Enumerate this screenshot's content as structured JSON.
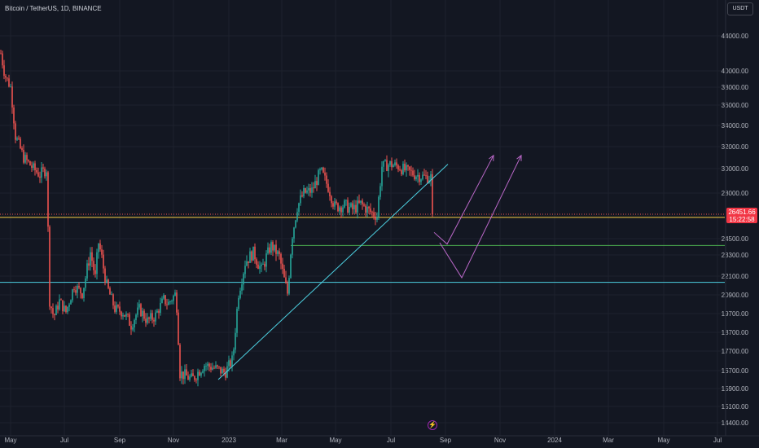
{
  "header": {
    "symbol_title": "Bitcoin / TetherUS, 1D, BINANCE",
    "currency_button": "USDT"
  },
  "colors": {
    "background": "#131722",
    "up_candle": "#26a69a",
    "down_candle": "#ef5350",
    "grid": "#1e222d",
    "axis_text": "#b2b5be",
    "yellow_level": "#f7d046",
    "green_level": "#4caf50",
    "cyan_level": "#4dd0e1",
    "trendline": "#4dd0e1",
    "projection": "#ba68c8",
    "price_tag": "#f23645"
  },
  "chart_data": {
    "type": "candlestick",
    "title": "Bitcoin / TetherUS, 1D, BINANCE",
    "y_axis_ticks": [
      "44000.00",
      "40000.00",
      "38000.00",
      "36000.00",
      "34000.00",
      "32000.00",
      "30000.00",
      "28000.00",
      "26451.66",
      "24500.00",
      "23300.00",
      "22100.00",
      "20900.00",
      "19700.00",
      "18700.00",
      "17700.00",
      "16700.00",
      "15900.00",
      "15100.00",
      "14400.00"
    ],
    "y_axis_values": [
      44000,
      40000,
      38000,
      36000,
      34000,
      32000,
      30000,
      28000,
      24500,
      23300,
      22100,
      20900,
      19700,
      18700,
      17700,
      16700,
      15900,
      15100,
      14400
    ],
    "x_axis_ticks": [
      "May",
      "Jul",
      "Sep",
      "Nov",
      "2023",
      "Mar",
      "May",
      "Jul",
      "Sep",
      "Nov",
      "2024",
      "Mar",
      "May",
      "Jul"
    ],
    "last_price": 26451.66,
    "last_price_label": "26451.66",
    "countdown_label": "15:22:58",
    "anchors": [
      {
        "t": 0,
        "p": 42000
      },
      {
        "t": 5,
        "p": 39500
      },
      {
        "t": 12,
        "p": 38000
      },
      {
        "t": 18,
        "p": 33000
      },
      {
        "t": 28,
        "p": 31000
      },
      {
        "t": 40,
        "p": 30000
      },
      {
        "t": 48,
        "p": 29500
      },
      {
        "t": 56,
        "p": 30000
      },
      {
        "t": 60,
        "p": 20500
      },
      {
        "t": 65,
        "p": 19500
      },
      {
        "t": 72,
        "p": 20500
      },
      {
        "t": 80,
        "p": 19800
      },
      {
        "t": 90,
        "p": 21500
      },
      {
        "t": 100,
        "p": 21000
      },
      {
        "t": 110,
        "p": 23500
      },
      {
        "t": 116,
        "p": 22000
      },
      {
        "t": 120,
        "p": 24200
      },
      {
        "t": 130,
        "p": 21500
      },
      {
        "t": 140,
        "p": 20000
      },
      {
        "t": 150,
        "p": 19800
      },
      {
        "t": 160,
        "p": 19100
      },
      {
        "t": 170,
        "p": 20000
      },
      {
        "t": 180,
        "p": 19300
      },
      {
        "t": 190,
        "p": 19600
      },
      {
        "t": 200,
        "p": 20600
      },
      {
        "t": 205,
        "p": 20300
      },
      {
        "t": 215,
        "p": 21000
      },
      {
        "t": 220,
        "p": 16600
      },
      {
        "t": 235,
        "p": 16300
      },
      {
        "t": 250,
        "p": 17000
      },
      {
        "t": 265,
        "p": 16800
      },
      {
        "t": 275,
        "p": 16600
      },
      {
        "t": 285,
        "p": 17300
      },
      {
        "t": 292,
        "p": 21000
      },
      {
        "t": 300,
        "p": 22900
      },
      {
        "t": 310,
        "p": 23500
      },
      {
        "t": 320,
        "p": 22400
      },
      {
        "t": 332,
        "p": 24000
      },
      {
        "t": 342,
        "p": 23200
      },
      {
        "t": 352,
        "p": 21000
      },
      {
        "t": 358,
        "p": 24800
      },
      {
        "t": 364,
        "p": 27000
      },
      {
        "t": 372,
        "p": 28000
      },
      {
        "t": 382,
        "p": 28200
      },
      {
        "t": 393,
        "p": 29800
      },
      {
        "t": 402,
        "p": 28500
      },
      {
        "t": 410,
        "p": 27000
      },
      {
        "t": 422,
        "p": 27100
      },
      {
        "t": 432,
        "p": 26800
      },
      {
        "t": 442,
        "p": 27200
      },
      {
        "t": 452,
        "p": 26700
      },
      {
        "t": 462,
        "p": 26300
      },
      {
        "t": 468,
        "p": 30200
      },
      {
        "t": 478,
        "p": 30400
      },
      {
        "t": 488,
        "p": 30200
      },
      {
        "t": 498,
        "p": 29800
      },
      {
        "t": 510,
        "p": 29500
      },
      {
        "t": 520,
        "p": 29300
      },
      {
        "t": 528,
        "p": 29300
      },
      {
        "t": 531,
        "p": 26451.66
      }
    ],
    "horizontal_levels": [
      {
        "name": "yellow",
        "price": 26200
      },
      {
        "name": "green",
        "price": 24000
      },
      {
        "name": "cyan",
        "price": 21700
      }
    ],
    "trendline": {
      "from": {
        "t": 268,
        "p": 16300
      },
      "to": {
        "t": 550,
        "p": 30400
      }
    },
    "projections": [
      {
        "points": [
          {
            "t": 533,
            "p": 25000
          },
          {
            "t": 549,
            "p": 24100
          },
          {
            "t": 606,
            "p": 31200
          }
        ]
      },
      {
        "points": [
          {
            "t": 540,
            "p": 24200
          },
          {
            "t": 567,
            "p": 22000
          },
          {
            "t": 640,
            "p": 31200
          }
        ]
      }
    ]
  }
}
